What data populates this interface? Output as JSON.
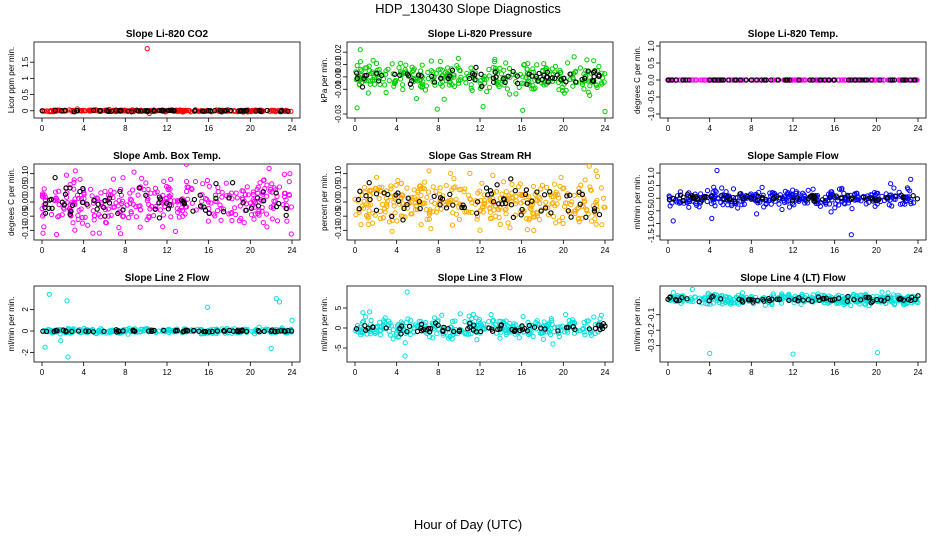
{
  "title": "HDP_130430  Slope Diagnostics",
  "x_axis_label": "Hour of Day (UTC)",
  "chart_data": [
    {
      "type": "scatter",
      "title": "Slope Li-820 CO2",
      "ylabel": "Licor ppm per min.",
      "xlim": [
        0,
        24
      ],
      "ylim": [
        -0.1,
        2.0
      ],
      "xticks": [
        0,
        4,
        8,
        12,
        16,
        20,
        24
      ],
      "yticks": [
        0,
        0.5,
        1,
        1.5
      ],
      "ytick_labels": [
        "0",
        "0.5",
        "1",
        "1.5"
      ],
      "color": "#ff0000",
      "noise": 0.015,
      "density": 260,
      "black_noise": 0.01,
      "outliers": [
        {
          "x": 10.1,
          "y": 1.92
        },
        {
          "x": 10.3,
          "y": -0.08
        },
        {
          "x": 3.4,
          "y": 0.06
        }
      ]
    },
    {
      "type": "scatter",
      "title": "Slope Li-820 Pressure",
      "ylabel": "kPa per min.",
      "xlim": [
        0,
        24
      ],
      "ylim": [
        -0.03,
        0.025
      ],
      "xticks": [
        0,
        4,
        8,
        12,
        16,
        20,
        24
      ],
      "yticks": [
        -0.03,
        -0.01,
        0.0,
        0.01,
        0.02
      ],
      "ytick_labels": [
        "-0.03",
        "-0.01",
        "0.00",
        "0.01",
        "0.02"
      ],
      "color": "#00cc00",
      "noise": 0.006,
      "density": 320,
      "black_noise": 0.003,
      "outliers": [
        {
          "x": 0.5,
          "y": 0.022
        },
        {
          "x": 0.2,
          "y": -0.025
        },
        {
          "x": 16.1,
          "y": -0.027
        },
        {
          "x": 24.0,
          "y": -0.028
        },
        {
          "x": 7.9,
          "y": -0.026
        },
        {
          "x": 12.3,
          "y": -0.024
        }
      ]
    },
    {
      "type": "scatter",
      "title": "Slope Li-820 Temp.",
      "ylabel": "degrees C per min.",
      "xlim": [
        0,
        24
      ],
      "ylim": [
        -1.0,
        1.0
      ],
      "xticks": [
        0,
        4,
        8,
        12,
        16,
        20,
        24
      ],
      "yticks": [
        -1.0,
        -0.5,
        0.0,
        0.5,
        1.0
      ],
      "ytick_labels": [
        "-1.0",
        "-0.5",
        "0.0",
        "0.5",
        "1.0"
      ],
      "color": "#ff00ff",
      "noise": 0.0,
      "density": 200,
      "black_noise": 0.0,
      "outliers": []
    },
    {
      "type": "scatter",
      "title": "Slope Amb. Box Temp.",
      "ylabel": "degrees C per min.",
      "xlim": [
        0,
        24
      ],
      "ylim": [
        -0.12,
        0.12
      ],
      "xticks": [
        0,
        4,
        8,
        12,
        16,
        20,
        24
      ],
      "yticks": [
        -0.1,
        -0.05,
        0.0,
        0.05,
        0.1
      ],
      "ytick_labels": [
        "-0.10",
        "-0.05",
        "0.00",
        "0.05",
        "0.10"
      ],
      "color": "#ff00ff",
      "noise": 0.045,
      "density": 340,
      "black_noise": 0.03,
      "outliers": [
        {
          "x": 0.1,
          "y": -0.11
        },
        {
          "x": 3.2,
          "y": 0.11
        },
        {
          "x": 23.8,
          "y": 0.1
        }
      ]
    },
    {
      "type": "scatter",
      "title": "Slope Gas Stream RH",
      "ylabel": "percent per min.",
      "xlim": [
        0,
        24
      ],
      "ylim": [
        -0.12,
        0.12
      ],
      "xticks": [
        0,
        4,
        8,
        12,
        16,
        20,
        24
      ],
      "yticks": [
        -0.1,
        -0.05,
        0.0,
        0.05,
        0.1
      ],
      "ytick_labels": [
        "-0.10",
        "-0.05",
        "0.00",
        "0.05",
        "0.10"
      ],
      "color": "#ffaa00",
      "noise": 0.045,
      "density": 360,
      "black_noise": 0.03,
      "outliers": [
        {
          "x": 7.1,
          "y": 0.11
        },
        {
          "x": 12.0,
          "y": -0.1
        }
      ]
    },
    {
      "type": "scatter",
      "title": "Slope Sample Flow",
      "ylabel": "ml/min per min.",
      "xlim": [
        0,
        24
      ],
      "ylim": [
        -1.5,
        1.2
      ],
      "xticks": [
        0,
        4,
        8,
        12,
        16,
        20,
        24
      ],
      "yticks": [
        -1.5,
        -1.0,
        -0.5,
        0.0,
        0.5,
        1.0
      ],
      "ytick_labels": [
        "-1.5",
        "-1.0",
        "-0.5",
        "0.0",
        "0.5",
        "1.0"
      ],
      "color": "#0000ff",
      "noise": 0.18,
      "density": 320,
      "black_noise": 0.06,
      "outliers": [
        {
          "x": 17.6,
          "y": -1.45
        },
        {
          "x": 4.7,
          "y": 1.1
        },
        {
          "x": 0.5,
          "y": -0.9
        },
        {
          "x": 4.2,
          "y": -0.8
        },
        {
          "x": 23.3,
          "y": 0.75
        }
      ]
    },
    {
      "type": "scatter",
      "title": "Slope Line 2 Flow",
      "ylabel": "ml/min per min.",
      "xlim": [
        0,
        24
      ],
      "ylim": [
        -2.5,
        3.8
      ],
      "xticks": [
        0,
        4,
        8,
        12,
        16,
        20,
        24
      ],
      "yticks": [
        -2,
        0,
        2
      ],
      "ytick_labels": [
        "-2",
        "0",
        "2"
      ],
      "color": "#00e0e0",
      "noise": 0.12,
      "density": 260,
      "black_noise": 0.05,
      "outliers": [
        {
          "x": 0.7,
          "y": 3.4
        },
        {
          "x": 2.4,
          "y": 2.8
        },
        {
          "x": 15.9,
          "y": 2.2
        },
        {
          "x": 22.5,
          "y": 3.0
        },
        {
          "x": 22.8,
          "y": 2.7
        },
        {
          "x": 0.3,
          "y": -1.5
        },
        {
          "x": 1.8,
          "y": -0.9
        },
        {
          "x": 2.5,
          "y": -2.4
        },
        {
          "x": 22.0,
          "y": -1.6
        },
        {
          "x": 24.0,
          "y": 1.0
        }
      ]
    },
    {
      "type": "scatter",
      "title": "Slope Line 3 Flow",
      "ylabel": "ml/min per min.",
      "xlim": [
        0,
        24
      ],
      "ylim": [
        -7.5,
        9.5
      ],
      "xticks": [
        0,
        4,
        8,
        12,
        16,
        20,
        24
      ],
      "yticks": [
        -5,
        0,
        5
      ],
      "ytick_labels": [
        "-5",
        "0",
        "5"
      ],
      "color": "#00e0e0",
      "noise": 1.4,
      "density": 300,
      "black_noise": 0.7,
      "outliers": [
        {
          "x": 5.0,
          "y": 9.0
        },
        {
          "x": 4.8,
          "y": -7.0
        },
        {
          "x": 19.0,
          "y": -4.0
        }
      ]
    },
    {
      "type": "scatter",
      "title": "Slope Line 4 (LT) Flow",
      "ylabel": "ml/min per min.",
      "xlim": [
        0,
        24
      ],
      "ylim": [
        -0.38,
        0.06
      ],
      "xticks": [
        0,
        4,
        8,
        12,
        16,
        20,
        24
      ],
      "yticks": [
        -0.3,
        -0.2,
        -0.1
      ],
      "ytick_labels": [
        "-0.3",
        "-0.2",
        "-0.1"
      ],
      "color": "#00e0e0",
      "noise": 0.018,
      "density": 360,
      "black_noise": 0.01,
      "outliers": [
        {
          "x": 4.0,
          "y": -0.35
        },
        {
          "x": 12.0,
          "y": -0.355
        },
        {
          "x": 20.1,
          "y": -0.345
        }
      ]
    }
  ]
}
